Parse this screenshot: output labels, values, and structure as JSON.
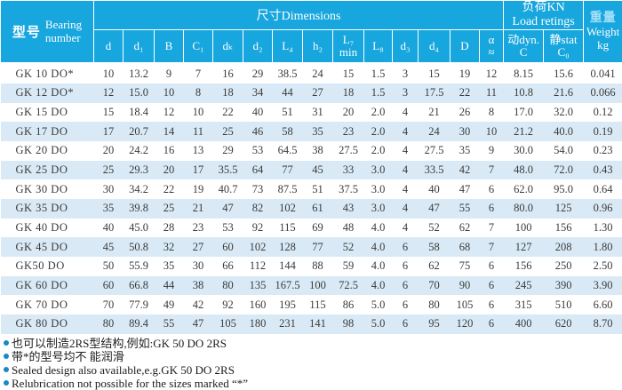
{
  "table": {
    "header": {
      "bearing_cn": "型号",
      "bearing_en": "Bearing\nnumber",
      "dimensions_group": "尺寸Dimensions",
      "load_group": "负荷KN\nLoad retings",
      "weight_cn": "重量",
      "weight_en": "Weight",
      "weight_unit": "kg"
    },
    "columns": [
      "d",
      "d₁",
      "B",
      "C₁",
      "dₖ",
      "d₂",
      "L₄",
      "h₂",
      "L₇\nmin",
      "L₈",
      "d₃",
      "d₄",
      "D",
      "α\n≈",
      "动dyn.\nC",
      "静stat\nC₀"
    ],
    "rows": [
      [
        "GK 10 DO*",
        "10",
        "13.2",
        "9",
        "7",
        "16",
        "29",
        "38.5",
        "24",
        "15",
        "1.5",
        "3",
        "15",
        "19",
        "12",
        "8.15",
        "15.6",
        "0.041"
      ],
      [
        "GK 12 DO*",
        "12",
        "15.0",
        "10",
        "8",
        "18",
        "34",
        "44",
        "27",
        "18",
        "1.5",
        "3",
        "17.5",
        "22",
        "11",
        "10.8",
        "21.6",
        "0.066"
      ],
      [
        "GK 15 DO",
        "15",
        "18.4",
        "12",
        "10",
        "22",
        "40",
        "51",
        "31",
        "20",
        "2.0",
        "4",
        "21",
        "26",
        "8",
        "17.0",
        "32.0",
        "0.12"
      ],
      [
        "GK 17 DO",
        "17",
        "20.7",
        "14",
        "11",
        "25",
        "46",
        "58",
        "35",
        "23",
        "2.0",
        "4",
        "24",
        "30",
        "10",
        "21.2",
        "40.0",
        "0.19"
      ],
      [
        "GK 20 DO",
        "20",
        "24.2",
        "16",
        "13",
        "29",
        "53",
        "64.5",
        "38",
        "27.5",
        "2.0",
        "4",
        "27.5",
        "35",
        "9",
        "30.0",
        "54.0",
        "0.23"
      ],
      [
        "GK 25 DO",
        "25",
        "29.3",
        "20",
        "17",
        "35.5",
        "64",
        "77",
        "45",
        "33",
        "3.0",
        "4",
        "33.5",
        "42",
        "7",
        "48.0",
        "72.0",
        "0.43"
      ],
      [
        "GK 30 DO",
        "30",
        "34.2",
        "22",
        "19",
        "40.7",
        "73",
        "87.5",
        "51",
        "37.5",
        "3.0",
        "4",
        "40",
        "47",
        "6",
        "62.0",
        "95.0",
        "0.64"
      ],
      [
        "GK 35 DO",
        "35",
        "39.8",
        "25",
        "21",
        "47",
        "82",
        "102",
        "61",
        "43",
        "3.0",
        "4",
        "47",
        "55",
        "6",
        "80.0",
        "125",
        "0.96"
      ],
      [
        "GK 40 DO",
        "40",
        "45.0",
        "28",
        "23",
        "53",
        "92",
        "115",
        "69",
        "48",
        "4.0",
        "4",
        "52",
        "62",
        "7",
        "100",
        "156",
        "1.30"
      ],
      [
        "GK 45 DO",
        "45",
        "50.8",
        "32",
        "27",
        "60",
        "102",
        "128",
        "77",
        "52",
        "4.0",
        "6",
        "58",
        "68",
        "7",
        "127",
        "208",
        "1.80"
      ],
      [
        "GK50 DO",
        "50",
        "55.9",
        "35",
        "30",
        "66",
        "112",
        "144",
        "88",
        "59",
        "4.0",
        "6",
        "62",
        "75",
        "6",
        "156",
        "250",
        "2.50"
      ],
      [
        "GK 60 DO",
        "60",
        "66.8",
        "44",
        "38",
        "80",
        "135",
        "167.5",
        "100",
        "72.5",
        "4.0",
        "6",
        "70",
        "90",
        "6",
        "245",
        "390",
        "3.90"
      ],
      [
        "GK 70 DO",
        "70",
        "77.9",
        "49",
        "42",
        "92",
        "160",
        "195",
        "115",
        "86",
        "5.0",
        "6",
        "80",
        "105",
        "6",
        "315",
        "510",
        "6.60"
      ],
      [
        "GK 80 DO",
        "80",
        "89.4",
        "55",
        "47",
        "105",
        "180",
        "231",
        "141",
        "98",
        "5.0",
        "6",
        "95",
        "120",
        "6",
        "400",
        "620",
        "8.70"
      ]
    ]
  },
  "footnotes": [
    "也可以制造2RS型结构,例如:GK 50 DO 2RS",
    "带*的型号均不 能润滑",
    "Sealed design also available,e.g.GK 50 DO 2RS",
    "Relubrication not possible for the sizes marked “*”"
  ],
  "colors": {
    "header_bg": "#17a6dd",
    "row_alt_bg": "#d9eaf6",
    "bullet": "#1a87c9",
    "weight_cn_color": "#a5e0f8"
  }
}
